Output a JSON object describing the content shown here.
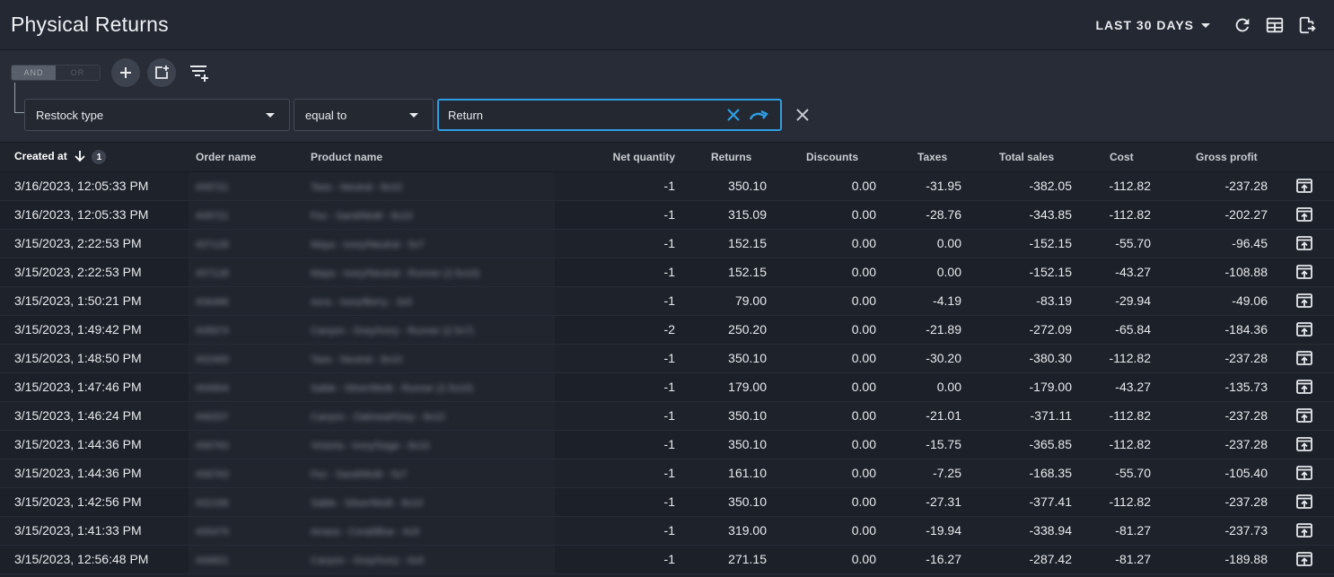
{
  "header": {
    "title": "Physical Returns",
    "date_range": "LAST 30 DAYS",
    "refresh_icon": "refresh-icon",
    "columns_icon": "table-columns-icon",
    "export_icon": "export-icon"
  },
  "filters": {
    "and_label": "AND",
    "or_label": "OR",
    "field": "Restock type",
    "operator": "equal to",
    "value": "Return"
  },
  "colors": {
    "accent": "#2f9ee2"
  },
  "table": {
    "columns": {
      "created_at": "Created at",
      "sort_rank": "1",
      "order_name": "Order name",
      "product_name": "Product name",
      "net_quantity": "Net quantity",
      "returns": "Returns",
      "discounts": "Discounts",
      "taxes": "Taxes",
      "total_sales": "Total sales",
      "cost": "Cost",
      "gross_profit": "Gross profit"
    },
    "rows": [
      {
        "created_at": "3/16/2023, 12:05:33 PM",
        "order": "#09721",
        "product": "Taos - Neutral - 8x10",
        "net_quantity": "-1",
        "returns": "350.10",
        "discounts": "0.00",
        "taxes": "-31.95",
        "total_sales": "-382.05",
        "cost": "-112.82",
        "gross_profit": "-237.28"
      },
      {
        "created_at": "3/16/2023, 12:05:33 PM",
        "order": "#09721",
        "product": "Fez - Sand/Multi - 8x10",
        "net_quantity": "-1",
        "returns": "315.09",
        "discounts": "0.00",
        "taxes": "-28.76",
        "total_sales": "-343.85",
        "cost": "-112.82",
        "gross_profit": "-202.27"
      },
      {
        "created_at": "3/15/2023, 2:22:53 PM",
        "order": "#07128",
        "product": "Maya - Ivory/Neutral - 5x7",
        "net_quantity": "-1",
        "returns": "152.15",
        "discounts": "0.00",
        "taxes": "0.00",
        "total_sales": "-152.15",
        "cost": "-55.70",
        "gross_profit": "-96.45"
      },
      {
        "created_at": "3/15/2023, 2:22:53 PM",
        "order": "#07128",
        "product": "Maya - Ivory/Neutral - Runner (2.5x10)",
        "net_quantity": "-1",
        "returns": "152.15",
        "discounts": "0.00",
        "taxes": "0.00",
        "total_sales": "-152.15",
        "cost": "-43.27",
        "gross_profit": "-108.88"
      },
      {
        "created_at": "3/15/2023, 1:50:21 PM",
        "order": "#06486",
        "product": "Azra - Ivory/Berry - 3x5",
        "net_quantity": "-1",
        "returns": "79.00",
        "discounts": "0.00",
        "taxes": "-4.19",
        "total_sales": "-83.19",
        "cost": "-29.94",
        "gross_profit": "-49.06"
      },
      {
        "created_at": "3/15/2023, 1:49:42 PM",
        "order": "#05674",
        "product": "Canyon - Grey/Ivory - Runner (2.5x7)",
        "net_quantity": "-2",
        "returns": "250.20",
        "discounts": "0.00",
        "taxes": "-21.89",
        "total_sales": "-272.09",
        "cost": "-65.84",
        "gross_profit": "-184.36"
      },
      {
        "created_at": "3/15/2023, 1:48:50 PM",
        "order": "#02469",
        "product": "Taos - Neutral - 8x10",
        "net_quantity": "-1",
        "returns": "350.10",
        "discounts": "0.00",
        "taxes": "-30.20",
        "total_sales": "-380.30",
        "cost": "-112.82",
        "gross_profit": "-237.28"
      },
      {
        "created_at": "3/15/2023, 1:47:46 PM",
        "order": "#04904",
        "product": "Sable - Silver/Multi - Runner (2.5x10)",
        "net_quantity": "-1",
        "returns": "179.00",
        "discounts": "0.00",
        "taxes": "0.00",
        "total_sales": "-179.00",
        "cost": "-43.27",
        "gross_profit": "-135.73"
      },
      {
        "created_at": "3/15/2023, 1:46:24 PM",
        "order": "#06207",
        "product": "Canyon - Oatmeal/Grey - 8x10",
        "net_quantity": "-1",
        "returns": "350.10",
        "discounts": "0.00",
        "taxes": "-21.01",
        "total_sales": "-371.11",
        "cost": "-112.82",
        "gross_profit": "-237.28"
      },
      {
        "created_at": "3/15/2023, 1:44:36 PM",
        "order": "#06763",
        "product": "Victoria - Ivory/Sage - 8x10",
        "net_quantity": "-1",
        "returns": "350.10",
        "discounts": "0.00",
        "taxes": "-15.75",
        "total_sales": "-365.85",
        "cost": "-112.82",
        "gross_profit": "-237.28"
      },
      {
        "created_at": "3/15/2023, 1:44:36 PM",
        "order": "#06763",
        "product": "Fez - Sand/Multi - 5x7",
        "net_quantity": "-1",
        "returns": "161.10",
        "discounts": "0.00",
        "taxes": "-7.25",
        "total_sales": "-168.35",
        "cost": "-55.70",
        "gross_profit": "-105.40"
      },
      {
        "created_at": "3/15/2023, 1:42:56 PM",
        "order": "#02196",
        "product": "Sable - Silver/Multi - 8x10",
        "net_quantity": "-1",
        "returns": "350.10",
        "discounts": "0.00",
        "taxes": "-27.31",
        "total_sales": "-377.41",
        "cost": "-112.82",
        "gross_profit": "-237.28"
      },
      {
        "created_at": "3/15/2023, 1:41:33 PM",
        "order": "#05479",
        "product": "Amara - Coral/Blue - 6x9",
        "net_quantity": "-1",
        "returns": "319.00",
        "discounts": "0.00",
        "taxes": "-19.94",
        "total_sales": "-338.94",
        "cost": "-81.27",
        "gross_profit": "-237.73"
      },
      {
        "created_at": "3/15/2023, 12:56:48 PM",
        "order": "#06801",
        "product": "Canyon - Grey/Ivory - 6x9",
        "net_quantity": "-1",
        "returns": "271.15",
        "discounts": "0.00",
        "taxes": "-16.27",
        "total_sales": "-287.42",
        "cost": "-81.27",
        "gross_profit": "-189.88"
      }
    ]
  }
}
